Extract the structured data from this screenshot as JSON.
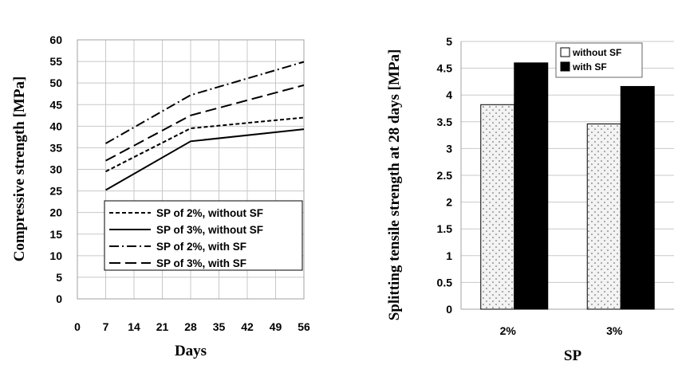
{
  "chart_data": [
    {
      "type": "line",
      "xlabel": "Days",
      "ylabel": "Compressive strength [MPa]",
      "xlim": [
        0,
        56
      ],
      "ylim": [
        0,
        60
      ],
      "xticks": [
        "0",
        "7",
        "14",
        "21",
        "28",
        "35",
        "42",
        "49",
        "56"
      ],
      "yticks": [
        "0",
        "5",
        "10",
        "15",
        "20",
        "25",
        "30",
        "35",
        "40",
        "45",
        "50",
        "55",
        "60"
      ],
      "grid": true,
      "legend_position": "bottom-right",
      "x": [
        7,
        28,
        56
      ],
      "series": [
        {
          "name": "SP of 2%, without SF",
          "values": [
            29.5,
            39.5,
            42
          ],
          "style": "dashed"
        },
        {
          "name": "SP of 3%, without SF",
          "values": [
            25.2,
            36.5,
            39.3
          ],
          "style": "solid"
        },
        {
          "name": "SP of 2%, with SF",
          "values": [
            36,
            47.2,
            54.9
          ],
          "style": "dash-dot"
        },
        {
          "name": "SP of 3%, with SF",
          "values": [
            32,
            42.5,
            49.5
          ],
          "style": "long-dash"
        }
      ]
    },
    {
      "type": "bar",
      "xlabel": "SP",
      "ylabel": "Splitting tensile strength at 28 days [MPa]",
      "ylim": [
        0,
        5
      ],
      "yticks": [
        "0",
        "0.5",
        "1",
        "1.5",
        "2",
        "2.5",
        "3",
        "3.5",
        "4",
        "4.5",
        "5"
      ],
      "grid": true,
      "legend_position": "top-right",
      "categories": [
        "2%",
        "3%"
      ],
      "series": [
        {
          "name": "without SF",
          "values": [
            3.82,
            3.46
          ],
          "fill": "dotted"
        },
        {
          "name": "with SF",
          "values": [
            4.6,
            4.16
          ],
          "fill": "#000000"
        }
      ]
    }
  ]
}
